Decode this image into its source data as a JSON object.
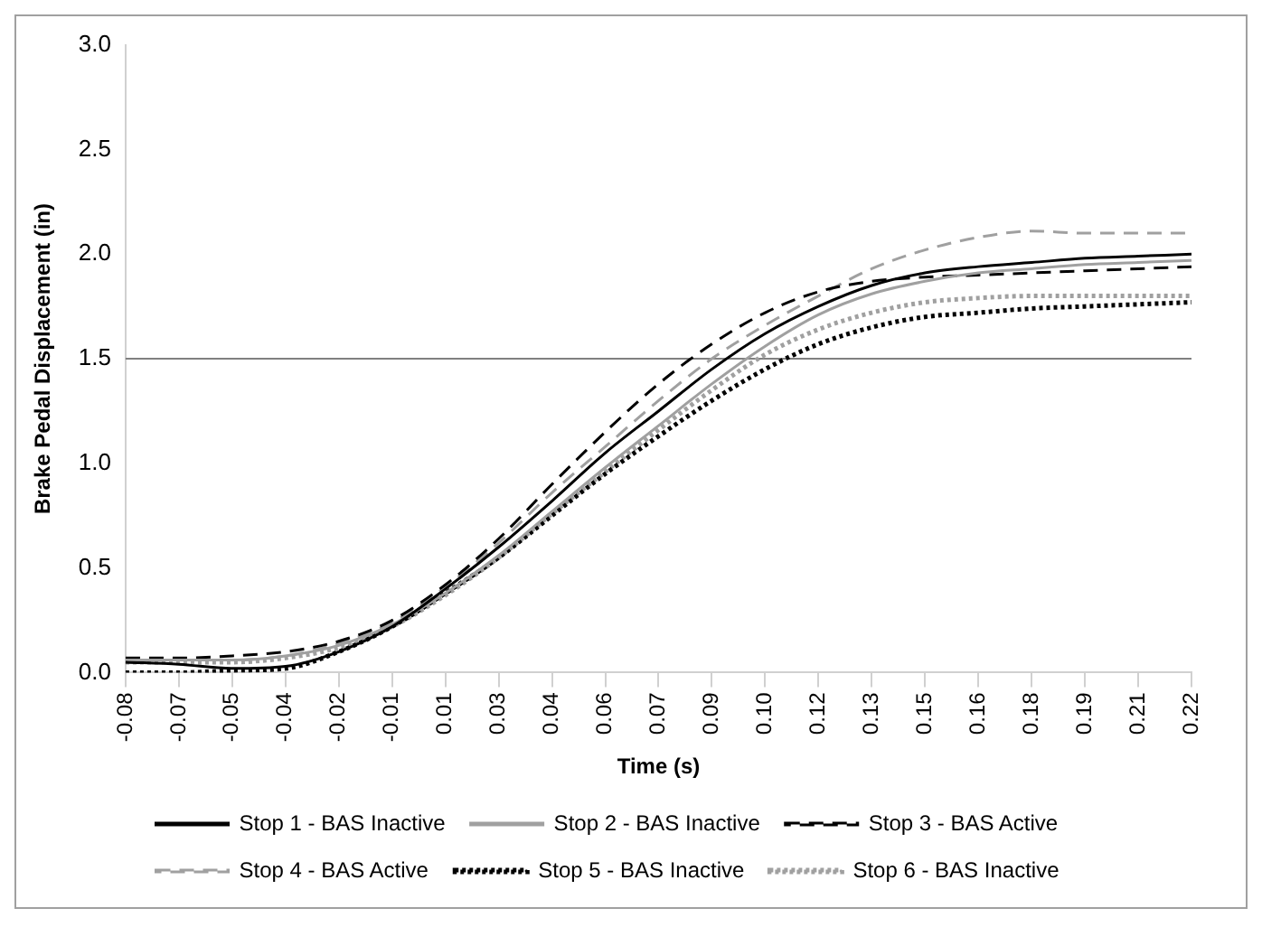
{
  "chart_data": {
    "type": "line",
    "xlabel": "Time (s)",
    "ylabel": "Brake Pedal Displacement (in)",
    "categories": [
      "-0.08",
      "-0.07",
      "-0.05",
      "-0.04",
      "-0.02",
      "-0.01",
      "0.01",
      "0.03",
      "0.04",
      "0.06",
      "0.07",
      "0.09",
      "0.10",
      "0.12",
      "0.13",
      "0.15",
      "0.16",
      "0.18",
      "0.19",
      "0.21",
      "0.22"
    ],
    "series": [
      {
        "name": "Stop 1 - BAS Inactive",
        "color": "#000000",
        "line_style": "solid",
        "values": [
          0.05,
          0.04,
          0.02,
          0.03,
          0.1,
          0.22,
          0.4,
          0.6,
          0.82,
          1.05,
          1.25,
          1.45,
          1.62,
          1.75,
          1.85,
          1.91,
          1.94,
          1.96,
          1.98,
          1.99,
          2.0
        ]
      },
      {
        "name": "Stop 2 - BAS Inactive",
        "color": "#a0a0a0",
        "line_style": "solid",
        "values": [
          0.06,
          0.06,
          0.06,
          0.08,
          0.13,
          0.23,
          0.38,
          0.56,
          0.77,
          0.98,
          1.18,
          1.38,
          1.56,
          1.71,
          1.81,
          1.87,
          1.91,
          1.93,
          1.95,
          1.96,
          1.97
        ]
      },
      {
        "name": "Stop 3 - BAS Active",
        "color": "#000000",
        "line_style": "dashed",
        "values": [
          0.07,
          0.07,
          0.08,
          0.1,
          0.15,
          0.25,
          0.42,
          0.64,
          0.9,
          1.15,
          1.38,
          1.57,
          1.72,
          1.82,
          1.87,
          1.89,
          1.9,
          1.91,
          1.92,
          1.93,
          1.94
        ]
      },
      {
        "name": "Stop 4 - BAS Active",
        "color": "#a0a0a0",
        "line_style": "dashed",
        "values": [
          0.06,
          0.06,
          0.06,
          0.08,
          0.14,
          0.24,
          0.41,
          0.62,
          0.86,
          1.08,
          1.3,
          1.5,
          1.66,
          1.8,
          1.93,
          2.02,
          2.08,
          2.11,
          2.1,
          2.1,
          2.1
        ]
      },
      {
        "name": "Stop 5 - BAS Inactive",
        "color": "#000000",
        "line_style": "dotted",
        "values": [
          0.0,
          0.0,
          0.01,
          0.02,
          0.1,
          0.22,
          0.38,
          0.55,
          0.75,
          0.95,
          1.13,
          1.3,
          1.45,
          1.57,
          1.65,
          1.7,
          1.72,
          1.74,
          1.75,
          1.76,
          1.77
        ]
      },
      {
        "name": "Stop 6 - BAS Inactive",
        "color": "#a0a0a0",
        "line_style": "dotted",
        "values": [
          0.05,
          0.05,
          0.05,
          0.07,
          0.12,
          0.22,
          0.37,
          0.55,
          0.76,
          0.96,
          1.16,
          1.35,
          1.52,
          1.64,
          1.72,
          1.77,
          1.79,
          1.8,
          1.8,
          1.8,
          1.8
        ]
      }
    ],
    "ylim": [
      0,
      3
    ],
    "yticks": [
      {
        "value": 0,
        "label": "0.0"
      },
      {
        "value": 0.5,
        "label": "0.5"
      },
      {
        "value": 1,
        "label": "1.0"
      },
      {
        "value": 1.5,
        "label": "1.5"
      },
      {
        "value": 2,
        "label": "2.0"
      },
      {
        "value": 2.5,
        "label": "2.5"
      },
      {
        "value": 3,
        "label": "3.0"
      }
    ],
    "ref_lines": [
      {
        "axis": "y",
        "value": 1.5,
        "color": "#808080"
      }
    ],
    "grid": false,
    "legend": "bottom",
    "marker": "none"
  }
}
